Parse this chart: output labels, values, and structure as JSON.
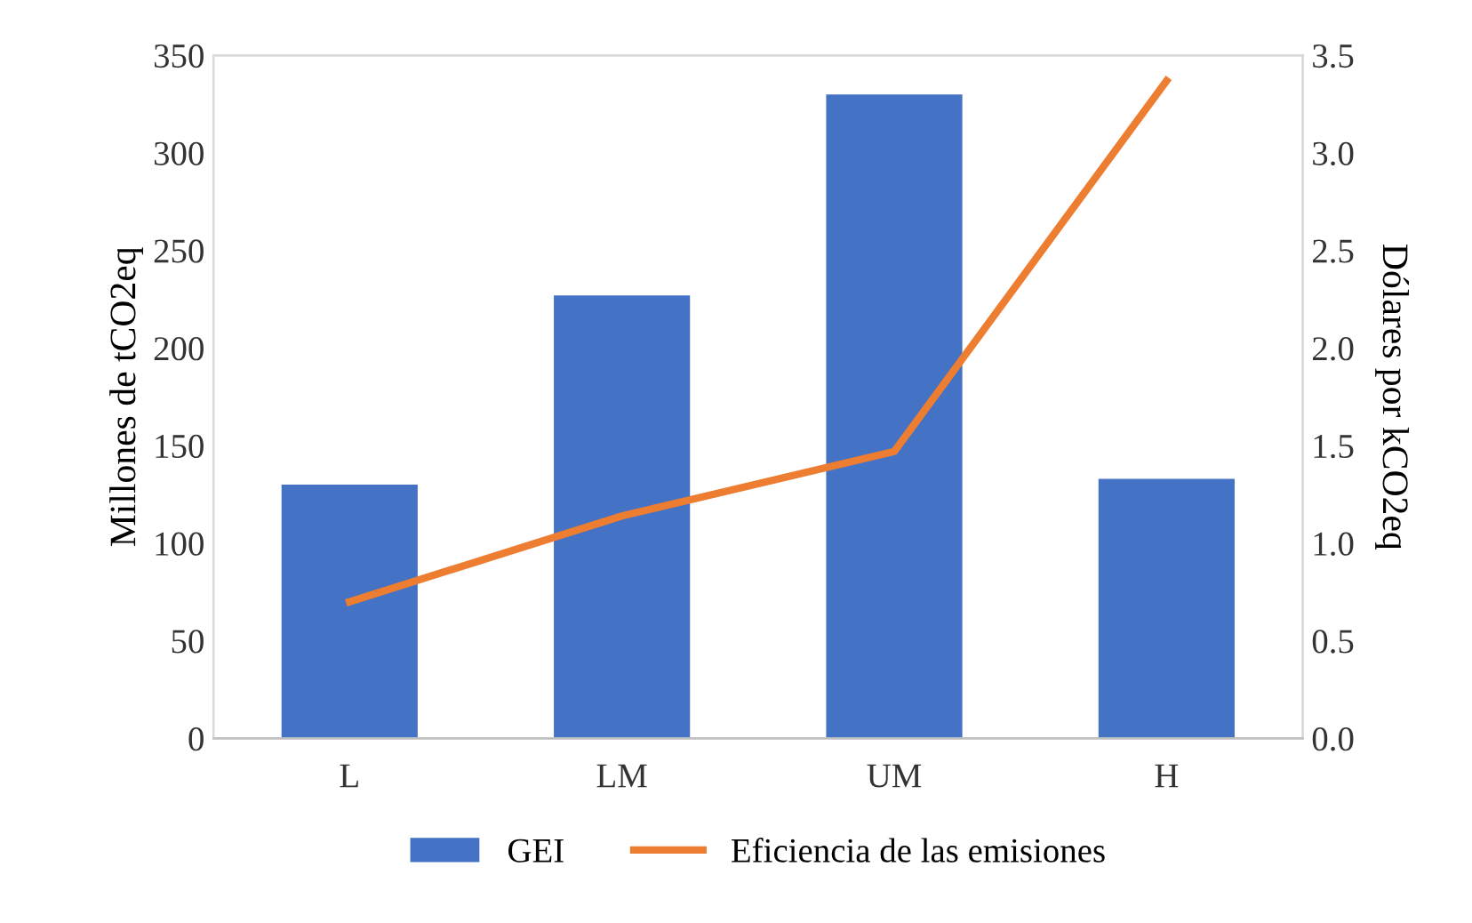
{
  "chart_data": {
    "type": "bar",
    "categories": [
      "L",
      "LM",
      "UM",
      "H"
    ],
    "ylabel": "Millones de tCO2eq",
    "y2label": "Dólares por kCO2eq",
    "ylim": [
      0,
      350
    ],
    "yticks": [
      0,
      50,
      100,
      150,
      200,
      250,
      300,
      350
    ],
    "y2lim": [
      0,
      3.5
    ],
    "y2ticks": [
      {
        "value": 0,
        "label": "0.0"
      },
      {
        "value": 0.5,
        "label": "0.5"
      },
      {
        "value": 1,
        "label": "1.0"
      },
      {
        "value": 1.5,
        "label": "1.5"
      },
      {
        "value": 2,
        "label": "2.0"
      },
      {
        "value": 2.5,
        "label": "2.5"
      },
      {
        "value": 3,
        "label": "3.0"
      },
      {
        "value": 3.5,
        "label": "3.5"
      }
    ],
    "series": [
      {
        "name": "GEI",
        "color": "#4472c4",
        "values": [
          130,
          227,
          330,
          133
        ]
      },
      {
        "name": "Eficiencia de las emisiones",
        "type": "line",
        "axis": "y2",
        "color": "#ed7d31",
        "values": [
          0.7,
          1.14,
          1.47,
          3.37
        ]
      }
    ],
    "legend": "bottom",
    "grid": false
  }
}
